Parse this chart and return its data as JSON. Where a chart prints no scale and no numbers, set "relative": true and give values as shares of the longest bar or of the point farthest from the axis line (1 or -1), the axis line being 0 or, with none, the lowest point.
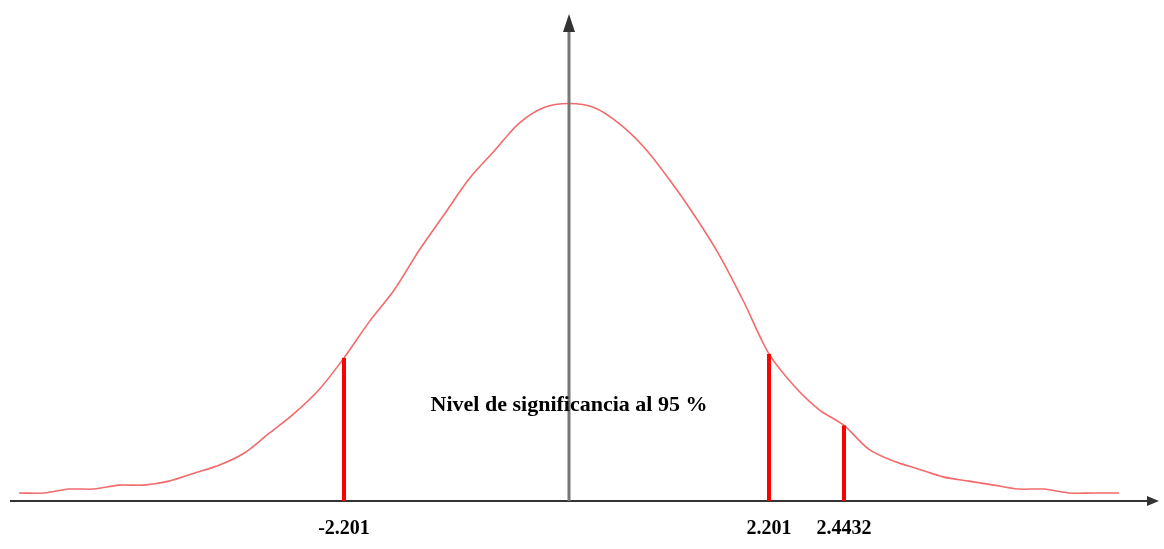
{
  "chart_data": {
    "type": "line",
    "relative": true,
    "legend": false,
    "marker": "none",
    "line_style": "solid",
    "annotations": [
      "Nivel de significancia al 95 %"
    ],
    "categories": [
      null,
      null,
      null,
      null,
      null,
      null,
      null,
      null,
      null,
      null,
      null,
      null,
      null,
      "-2.201",
      null,
      null,
      null,
      null,
      null,
      null,
      null,
      null,
      null,
      null,
      null,
      null,
      null,
      null,
      null,
      null,
      "2.201",
      null,
      null,
      "2.4432",
      null,
      null,
      null,
      null,
      null,
      null,
      null,
      null,
      null,
      null,
      null
    ],
    "series": [
      {
        "color": "#f26b6b",
        "values": [
          0.02,
          0.02,
          0.03,
          0.03,
          0.04,
          0.04,
          0.05,
          0.07,
          0.09,
          0.12,
          0.17,
          0.22,
          0.28,
          0.36,
          0.45,
          0.53,
          0.63,
          0.72,
          0.81,
          0.88,
          0.95,
          0.99,
          1,
          0.99,
          0.95,
          0.89,
          0.81,
          0.72,
          0.62,
          0.5,
          0.37,
          0.29,
          0.23,
          0.19,
          0.13,
          0.1,
          0.08,
          0.06,
          0.05,
          0.04,
          0.03,
          0.03,
          0.02,
          0.02,
          0.02
        ]
      }
    ],
    "ref_lines": [
      {
        "axis": "x",
        "value": "-2.201",
        "color": "#ff0000"
      },
      {
        "axis": "x",
        "value": "2.201",
        "color": "#ff0000"
      },
      {
        "axis": "x",
        "value": "2.4432",
        "color": "#ff0000"
      }
    ]
  }
}
